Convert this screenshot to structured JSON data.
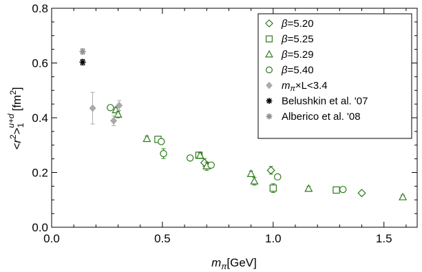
{
  "chart_data": {
    "type": "scatter",
    "title": "",
    "xlabel_var": "m",
    "xlabel_sub": "π",
    "xlabel_unit": "[GeV]",
    "ylabel_main": "<r",
    "ylabel_sup": "2",
    "ylabel_close": ">",
    "ylabel_sub": "1",
    "ylabel_supflavor": "u+d",
    "ylabel_unit": "[fm",
    "ylabel_unit_sup": "2",
    "ylabel_unit_close": "]",
    "xlim": [
      0.0,
      1.65
    ],
    "ylim": [
      0.0,
      0.8
    ],
    "xticks": [
      "0.0",
      "0.5",
      "1.0",
      "1.5"
    ],
    "xtick_values": [
      0.0,
      0.5,
      1.0,
      1.5
    ],
    "yticks": [
      "0.0",
      "0.2",
      "0.4",
      "0.6",
      "0.8"
    ],
    "ytick_values": [
      0.0,
      0.2,
      0.4,
      0.6,
      0.8
    ],
    "grid": false,
    "legend_position": "top-right",
    "series": [
      {
        "name": "β=5.20",
        "beta": "β",
        "name_rest": "=5.20",
        "marker": "diamond-open",
        "color": "#2b7a1a",
        "points": [
          {
            "x": 0.69,
            "y": 0.236,
            "err": 0.014
          },
          {
            "x": 0.99,
            "y": 0.208,
            "err": 0.014
          },
          {
            "x": 1.4,
            "y": 0.125,
            "err": 0.007
          }
        ]
      },
      {
        "name": "β=5.25",
        "beta": "β",
        "name_rest": "=5.25",
        "marker": "square-open",
        "color": "#2b7a1a",
        "points": [
          {
            "x": 0.48,
            "y": 0.321,
            "err": 0.008
          },
          {
            "x": 0.665,
            "y": 0.263,
            "err": 0.01
          },
          {
            "x": 1.0,
            "y": 0.143,
            "err": 0.016
          },
          {
            "x": 1.285,
            "y": 0.136,
            "err": 0.008
          }
        ]
      },
      {
        "name": "β=5.29",
        "beta": "β",
        "name_rest": "=5.29",
        "marker": "triangle-open",
        "color": "#2b7a1a",
        "points": [
          {
            "x": 0.29,
            "y": 0.428,
            "err": 0.01
          },
          {
            "x": 0.3,
            "y": 0.412,
            "err": 0.012
          },
          {
            "x": 0.43,
            "y": 0.323,
            "err": 0.01
          },
          {
            "x": 0.67,
            "y": 0.262,
            "err": 0.01
          },
          {
            "x": 0.7,
            "y": 0.223,
            "err": 0.015
          },
          {
            "x": 0.9,
            "y": 0.195,
            "err": 0.01
          },
          {
            "x": 0.915,
            "y": 0.168,
            "err": 0.014
          },
          {
            "x": 1.16,
            "y": 0.141,
            "err": 0.008
          },
          {
            "x": 1.585,
            "y": 0.11,
            "err": 0.007
          }
        ]
      },
      {
        "name": "β=5.40",
        "beta": "β",
        "name_rest": "=5.40",
        "marker": "circle-open",
        "color": "#2b7a1a",
        "points": [
          {
            "x": 0.265,
            "y": 0.437,
            "err": 0.008
          },
          {
            "x": 0.495,
            "y": 0.313,
            "err": 0.008
          },
          {
            "x": 0.505,
            "y": 0.269,
            "err": 0.018
          },
          {
            "x": 0.625,
            "y": 0.253,
            "err": 0.009
          },
          {
            "x": 0.72,
            "y": 0.227,
            "err": 0.008
          },
          {
            "x": 1.02,
            "y": 0.184,
            "err": 0.006
          },
          {
            "x": 1.315,
            "y": 0.138,
            "err": 0.006
          }
        ]
      },
      {
        "name": "m_π×L<3.4",
        "name_var": "m",
        "name_sub": "π",
        "name_rest": "×L<3.4",
        "marker": "diamond-filled",
        "color": "#aaaaaa",
        "points": [
          {
            "x": 0.185,
            "y": 0.435,
            "err": 0.058
          },
          {
            "x": 0.28,
            "y": 0.389,
            "err": 0.018
          },
          {
            "x": 0.305,
            "y": 0.445,
            "err": 0.018
          }
        ]
      },
      {
        "name": "Belushkin et al. '07",
        "marker": "asterisk",
        "color": "#000000",
        "points": [
          {
            "x": 0.14,
            "y": 0.603,
            "err": 0.01
          }
        ]
      },
      {
        "name": "Alberico et al. '08",
        "marker": "asterisk",
        "color": "#8c8c8c",
        "points": [
          {
            "x": 0.14,
            "y": 0.642,
            "err": 0.01
          }
        ]
      }
    ]
  }
}
